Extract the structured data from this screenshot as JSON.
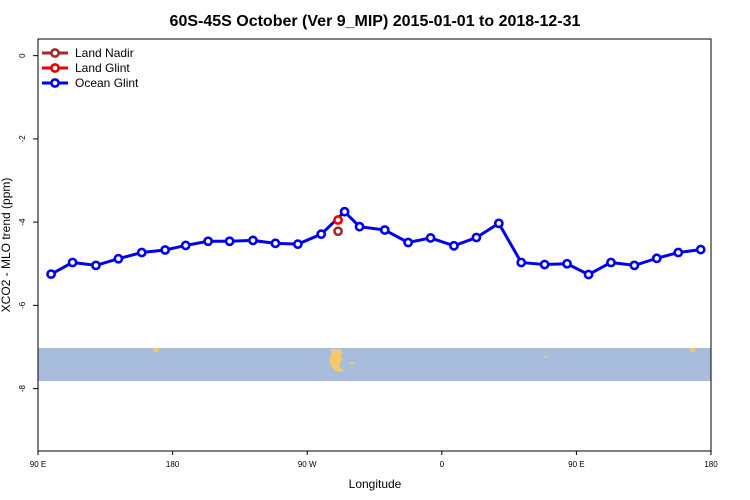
{
  "chart_data": {
    "type": "line",
    "title": "60S-45S October (Ver 9_MIP)   2015-01-01 to 2018-12-31",
    "xlabel": "Longitude",
    "ylabel": "XCO2 - MLO trend (ppm)",
    "ylim": [
      -9.5,
      0.4
    ],
    "yticks": [
      0,
      -2,
      -4,
      -6,
      -8
    ],
    "xlim": [
      0,
      360
    ],
    "xticks": [
      {
        "value": 0,
        "label": "90 E"
      },
      {
        "value": 72,
        "label": "180"
      },
      {
        "value": 144,
        "label": "90 W"
      },
      {
        "value": 216,
        "label": "0"
      },
      {
        "value": 288,
        "label": "90 E"
      },
      {
        "value": 360,
        "label": "180"
      }
    ],
    "legend": {
      "position": "top-left"
    },
    "series": [
      {
        "name": "Land Nadir",
        "color": "#a52a2a",
        "x": [
          160.5
        ],
        "y": [
          -4.22
        ]
      },
      {
        "name": "Land Glint",
        "color": "#ee0000",
        "x": [
          160.5
        ],
        "y": [
          -3.95
        ]
      },
      {
        "name": "Ocean Glint",
        "color": "#0000ee",
        "x": [
          7,
          18.5,
          31,
          43,
          55.5,
          68,
          79,
          91,
          102.5,
          115,
          127,
          139,
          151.5,
          164,
          172,
          185.5,
          198,
          210,
          222.5,
          234.5,
          246.5,
          258.5,
          271,
          283,
          294.5,
          306.5,
          319,
          331,
          342.5,
          354.5
        ],
        "y": [
          -5.25,
          -4.97,
          -5.04,
          -4.88,
          -4.73,
          -4.67,
          -4.56,
          -4.46,
          -4.46,
          -4.44,
          -4.51,
          -4.53,
          -4.29,
          -3.75,
          -4.11,
          -4.19,
          -4.49,
          -4.38,
          -4.57,
          -4.37,
          -4.03,
          -4.97,
          -5.02,
          -5.0,
          -5.26,
          -4.97,
          -5.04,
          -4.87,
          -4.73,
          -4.66
        ]
      }
    ]
  }
}
